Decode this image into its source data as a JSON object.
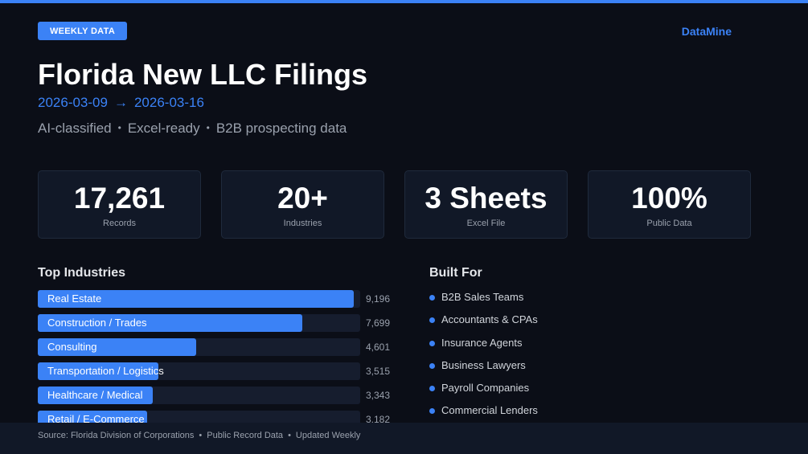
{
  "header": {
    "badge": "WEEKLY DATA",
    "brand": "DataMine",
    "title": "Florida New LLC Filings",
    "date_start": "2026-03-09",
    "date_arrow": "→",
    "date_end": "2026-03-16",
    "tags": [
      "AI-classified",
      "Excel-ready",
      "B2B prospecting data"
    ],
    "tag_separator": "•"
  },
  "stats": [
    {
      "value": "17,261",
      "label": "Records"
    },
    {
      "value": "20+",
      "label": "Industries"
    },
    {
      "value": "3 Sheets",
      "label": "Excel File"
    },
    {
      "value": "100%",
      "label": "Public Data"
    }
  ],
  "top_industries": {
    "heading": "Top Industries",
    "max_value": 9196,
    "items": [
      {
        "name": "Real Estate",
        "value": 9196,
        "display": "9,196"
      },
      {
        "name": "Construction / Trades",
        "value": 7699,
        "display": "7,699"
      },
      {
        "name": "Consulting",
        "value": 4601,
        "display": "4,601"
      },
      {
        "name": "Transportation / Logistics",
        "value": 3515,
        "display": "3,515"
      },
      {
        "name": "Healthcare / Medical",
        "value": 3343,
        "display": "3,343"
      },
      {
        "name": "Retail / E-Commerce",
        "value": 3182,
        "display": "3,182"
      }
    ]
  },
  "built_for": {
    "heading": "Built For",
    "items": [
      "B2B Sales Teams",
      "Accountants & CPAs",
      "Insurance Agents",
      "Business Lawyers",
      "Payroll Companies",
      "Commercial Lenders"
    ]
  },
  "footer": {
    "items": [
      "Source: Florida Division of Corporations",
      "Public Record Data",
      "Updated Weekly"
    ],
    "separator": "•"
  },
  "colors": {
    "accent": "#3b82f6",
    "background": "#0b0e17",
    "card": "#111827"
  }
}
